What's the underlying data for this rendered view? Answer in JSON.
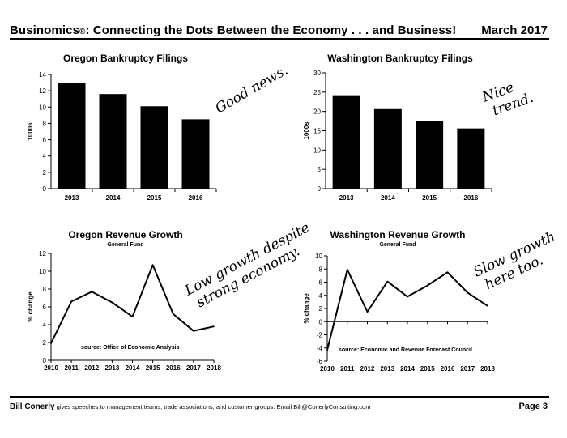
{
  "header": {
    "title_main": "Businomics",
    "title_reg": "®",
    "title_rest": ": Connecting the Dots Between the Economy . . . and Business!",
    "date": "March 2017"
  },
  "footer": {
    "name": "Bill Conerly",
    "text": " gives speeches to management teams, trade associations, and customer groups.  Email Bill@ConerlyConsulting.com",
    "page": "Page 3"
  },
  "chart_data": [
    {
      "id": "oregon_bankruptcy",
      "type": "bar",
      "title": "Oregon Bankruptcy Filings",
      "ylabel": "1000s",
      "categories": [
        "2013",
        "2014",
        "2015",
        "2016"
      ],
      "values": [
        13.0,
        11.6,
        10.1,
        8.5
      ],
      "ylim": [
        0,
        14
      ],
      "yticks": [
        0,
        2,
        4,
        6,
        8,
        10,
        12,
        14
      ],
      "annotation": [
        "Good news."
      ]
    },
    {
      "id": "washington_bankruptcy",
      "type": "bar",
      "title": "Washington Bankruptcy Filings",
      "ylabel": "1000s",
      "categories": [
        "2013",
        "2014",
        "2015",
        "2016"
      ],
      "values": [
        24.2,
        20.6,
        17.6,
        15.6
      ],
      "ylim": [
        0,
        30
      ],
      "yticks": [
        0,
        5,
        10,
        15,
        20,
        25,
        30
      ],
      "annotation": [
        "Nice",
        "trend."
      ]
    },
    {
      "id": "oregon_revenue",
      "type": "line",
      "title": "Oregon Revenue Growth",
      "subtitle": "General Fund",
      "ylabel": "% change",
      "x": [
        "2010",
        "2011",
        "2012",
        "2013",
        "2014",
        "2015",
        "2016",
        "2017",
        "2018"
      ],
      "values": [
        1.9,
        6.6,
        7.7,
        6.5,
        4.9,
        10.7,
        5.2,
        3.3,
        3.8
      ],
      "ylim": [
        0,
        12
      ],
      "yticks": [
        0,
        2,
        4,
        6,
        8,
        10,
        12
      ],
      "source": "source: Office of Economic Analysis",
      "annotation": [
        "Low growth despite",
        "strong economy."
      ]
    },
    {
      "id": "washington_revenue",
      "type": "line",
      "title": "Washington Revenue Growth",
      "subtitle": "General Fund",
      "ylabel": "% change",
      "x": [
        "2010",
        "2011",
        "2012",
        "2013",
        "2014",
        "2015",
        "2016",
        "2017",
        "2018"
      ],
      "values": [
        -4.3,
        7.9,
        1.5,
        6.1,
        3.8,
        5.5,
        7.5,
        4.4,
        2.4
      ],
      "ylim": [
        -6,
        10
      ],
      "yticks": [
        -6,
        -4,
        -2,
        0,
        2,
        4,
        6,
        8,
        10
      ],
      "source": "source: Economic and Revenue Forecast Council",
      "annotation": [
        "Slow growth",
        "here too."
      ]
    }
  ]
}
